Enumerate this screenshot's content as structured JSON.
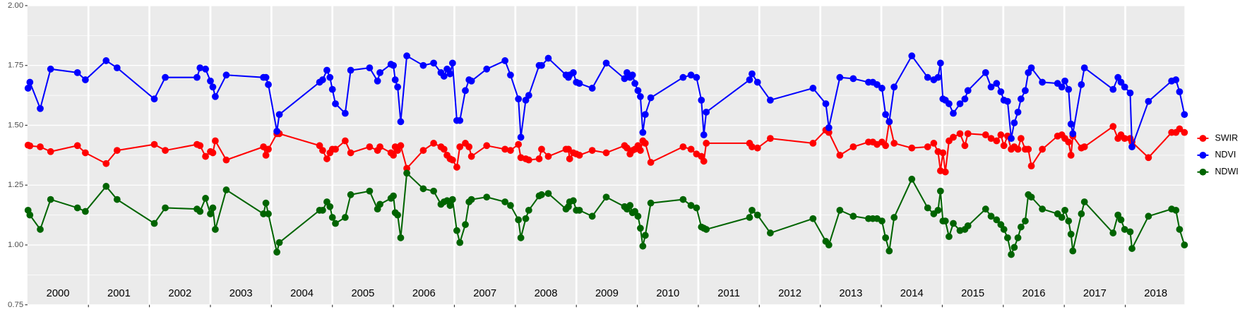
{
  "chart_data": {
    "type": "line",
    "x": [
      2000.01,
      2000.04,
      2000.21,
      2000.38,
      2000.82,
      2000.95,
      2001.29,
      2001.47,
      2002.08,
      2002.26,
      2002.78,
      2002.83,
      2002.92,
      2003.0,
      2003.04,
      2003.08,
      2003.26,
      2003.87,
      2003.91,
      2003.95,
      2004.09,
      2004.13,
      2004.79,
      2004.84,
      2004.91,
      2004.96,
      2005.0,
      2005.05,
      2005.21,
      2005.3,
      2005.61,
      2005.74,
      2005.78,
      2005.96,
      2006.0,
      2006.03,
      2006.07,
      2006.12,
      2006.22,
      2006.49,
      2006.66,
      2006.78,
      2006.83,
      2006.88,
      2006.93,
      2006.97,
      2007.04,
      2007.09,
      2007.18,
      2007.24,
      2007.28,
      2007.53,
      2007.83,
      2007.92,
      2008.05,
      2008.09,
      2008.17,
      2008.22,
      2008.39,
      2008.43,
      2008.54,
      2008.83,
      2008.87,
      2008.89,
      2008.95,
      2009.0,
      2009.05,
      2009.26,
      2009.49,
      2009.79,
      2009.83,
      2009.88,
      2009.92,
      2009.96,
      2010.01,
      2010.05,
      2010.09,
      2010.13,
      2010.22,
      2010.75,
      2010.88,
      2010.97,
      2011.05,
      2011.09,
      2011.13,
      2011.84,
      2011.88,
      2011.97,
      2012.18,
      2012.88,
      2013.09,
      2013.14,
      2013.32,
      2013.54,
      2013.79,
      2013.86,
      2013.93,
      2014.01,
      2014.07,
      2014.13,
      2014.21,
      2014.5,
      2014.76,
      2014.86,
      2014.93,
      2014.97,
      2015.01,
      2015.05,
      2015.11,
      2015.18,
      2015.29,
      2015.37,
      2015.42,
      2015.71,
      2015.8,
      2015.89,
      2015.96,
      2016.01,
      2016.07,
      2016.13,
      2016.18,
      2016.24,
      2016.29,
      2016.36,
      2016.41,
      2016.46,
      2016.64,
      2016.89,
      2016.96,
      2017.01,
      2017.07,
      2017.11,
      2017.14,
      2017.28,
      2017.33,
      2017.8,
      2017.88,
      2017.93,
      2017.99,
      2018.08,
      2018.11,
      2018.38,
      2018.76,
      2018.83,
      2018.89,
      2018.97
    ],
    "series": [
      {
        "name": "SWIR",
        "color": "#ff0000",
        "values": [
          1.417,
          1.414,
          1.41,
          1.39,
          1.415,
          1.385,
          1.34,
          1.395,
          1.42,
          1.395,
          1.42,
          1.415,
          1.37,
          1.39,
          1.385,
          1.435,
          1.355,
          1.41,
          1.375,
          1.4,
          1.465,
          1.465,
          1.415,
          1.395,
          1.36,
          1.385,
          1.4,
          1.4,
          1.435,
          1.385,
          1.41,
          1.395,
          1.41,
          1.385,
          1.375,
          1.41,
          1.395,
          1.415,
          1.32,
          1.395,
          1.425,
          1.41,
          1.4,
          1.375,
          1.36,
          1.355,
          1.325,
          1.41,
          1.425,
          1.41,
          1.37,
          1.415,
          1.4,
          1.395,
          1.42,
          1.365,
          1.36,
          1.355,
          1.36,
          1.4,
          1.37,
          1.4,
          1.4,
          1.36,
          1.385,
          1.38,
          1.375,
          1.395,
          1.385,
          1.415,
          1.405,
          1.38,
          1.395,
          1.4,
          1.415,
          1.395,
          1.435,
          1.425,
          1.345,
          1.41,
          1.4,
          1.38,
          1.37,
          1.35,
          1.425,
          1.425,
          1.41,
          1.405,
          1.445,
          1.425,
          1.48,
          1.47,
          1.375,
          1.41,
          1.43,
          1.43,
          1.42,
          1.43,
          1.415,
          1.515,
          1.425,
          1.405,
          1.41,
          1.425,
          1.39,
          1.31,
          1.385,
          1.305,
          1.435,
          1.45,
          1.465,
          1.415,
          1.465,
          1.46,
          1.445,
          1.435,
          1.46,
          1.415,
          1.455,
          1.4,
          1.41,
          1.4,
          1.445,
          1.4,
          1.4,
          1.33,
          1.4,
          1.455,
          1.46,
          1.445,
          1.43,
          1.375,
          1.455,
          1.405,
          1.41,
          1.495,
          1.445,
          1.46,
          1.445,
          1.445,
          1.43,
          1.365,
          1.47,
          1.47,
          1.485,
          1.47
        ]
      },
      {
        "name": "NDVI",
        "color": "#0000ff",
        "values": [
          1.655,
          1.68,
          1.57,
          1.735,
          1.72,
          1.69,
          1.77,
          1.74,
          1.61,
          1.7,
          1.7,
          1.74,
          1.735,
          1.685,
          1.66,
          1.62,
          1.71,
          1.7,
          1.7,
          1.67,
          1.475,
          1.545,
          1.68,
          1.69,
          1.73,
          1.7,
          1.65,
          1.59,
          1.55,
          1.73,
          1.74,
          1.685,
          1.72,
          1.755,
          1.75,
          1.69,
          1.66,
          1.515,
          1.79,
          1.75,
          1.76,
          1.72,
          1.705,
          1.735,
          1.715,
          1.76,
          1.52,
          1.52,
          1.645,
          1.69,
          1.685,
          1.735,
          1.77,
          1.71,
          1.61,
          1.45,
          1.605,
          1.625,
          1.75,
          1.75,
          1.78,
          1.71,
          1.7,
          1.71,
          1.72,
          1.68,
          1.675,
          1.655,
          1.76,
          1.695,
          1.72,
          1.7,
          1.71,
          1.675,
          1.645,
          1.62,
          1.47,
          1.545,
          1.615,
          1.7,
          1.71,
          1.7,
          1.605,
          1.46,
          1.555,
          1.69,
          1.715,
          1.68,
          1.605,
          1.655,
          1.59,
          1.49,
          1.7,
          1.695,
          1.68,
          1.68,
          1.67,
          1.655,
          1.545,
          1.515,
          1.66,
          1.79,
          1.7,
          1.69,
          1.7,
          1.76,
          1.61,
          1.605,
          1.59,
          1.55,
          1.59,
          1.61,
          1.645,
          1.72,
          1.66,
          1.675,
          1.64,
          1.605,
          1.6,
          1.445,
          1.51,
          1.555,
          1.61,
          1.645,
          1.72,
          1.74,
          1.68,
          1.675,
          1.66,
          1.685,
          1.65,
          1.505,
          1.465,
          1.67,
          1.74,
          1.65,
          1.7,
          1.68,
          1.66,
          1.635,
          1.41,
          1.6,
          1.685,
          1.69,
          1.64,
          1.545
        ]
      },
      {
        "name": "NDWI",
        "color": "#006400",
        "values": [
          1.145,
          1.125,
          1.065,
          1.19,
          1.155,
          1.14,
          1.245,
          1.19,
          1.09,
          1.155,
          1.15,
          1.14,
          1.195,
          1.13,
          1.155,
          1.065,
          1.23,
          1.13,
          1.175,
          1.13,
          0.97,
          1.01,
          1.145,
          1.145,
          1.18,
          1.16,
          1.115,
          1.09,
          1.115,
          1.21,
          1.225,
          1.15,
          1.17,
          1.195,
          1.205,
          1.135,
          1.125,
          1.03,
          1.3,
          1.235,
          1.225,
          1.17,
          1.18,
          1.185,
          1.165,
          1.19,
          1.06,
          1.01,
          1.085,
          1.18,
          1.19,
          1.2,
          1.18,
          1.165,
          1.105,
          1.03,
          1.11,
          1.145,
          1.205,
          1.21,
          1.215,
          1.15,
          1.16,
          1.18,
          1.185,
          1.145,
          1.145,
          1.12,
          1.2,
          1.16,
          1.15,
          1.165,
          1.135,
          1.14,
          1.12,
          1.07,
          0.995,
          1.04,
          1.175,
          1.19,
          1.165,
          1.155,
          1.075,
          1.07,
          1.065,
          1.115,
          1.145,
          1.125,
          1.05,
          1.11,
          1.015,
          1.0,
          1.145,
          1.12,
          1.11,
          1.11,
          1.11,
          1.1,
          1.03,
          0.975,
          1.115,
          1.275,
          1.155,
          1.13,
          1.145,
          1.225,
          1.1,
          1.1,
          1.035,
          1.09,
          1.06,
          1.065,
          1.08,
          1.15,
          1.12,
          1.105,
          1.085,
          1.065,
          1.03,
          0.96,
          0.99,
          1.03,
          1.075,
          1.1,
          1.21,
          1.2,
          1.15,
          1.13,
          1.115,
          1.145,
          1.1,
          1.045,
          0.975,
          1.13,
          1.18,
          1.05,
          1.125,
          1.105,
          1.065,
          1.055,
          0.985,
          1.12,
          1.15,
          1.145,
          1.065,
          1.0
        ]
      }
    ],
    "xlim": [
      2000,
      2018.97
    ],
    "xticks": [
      2001,
      2002,
      2003,
      2004,
      2005,
      2006,
      2007,
      2008,
      2009,
      2010,
      2011,
      2012,
      2013,
      2014,
      2015,
      2016,
      2017,
      2018
    ],
    "ylim": [
      0.75,
      2.0
    ],
    "yticks": [
      0.75,
      {
        "value": 1.0,
        "label": "1.00"
      },
      1.25,
      {
        "value": 1.5,
        "label": "1.50"
      },
      1.75,
      {
        "value": 2.0,
        "label": "2.00"
      }
    ],
    "yminor": [
      0.875,
      1.125,
      1.375,
      1.625,
      1.875
    ],
    "annotations": [
      "2000",
      "2001",
      "2002",
      "2003",
      "2004",
      "2005",
      "2006",
      "2007",
      "2008",
      "2009",
      "2010",
      "2011",
      "2012",
      "2013",
      "2014",
      "2015",
      "2016",
      "2017",
      "2018"
    ],
    "grid": true,
    "legend": "right"
  }
}
